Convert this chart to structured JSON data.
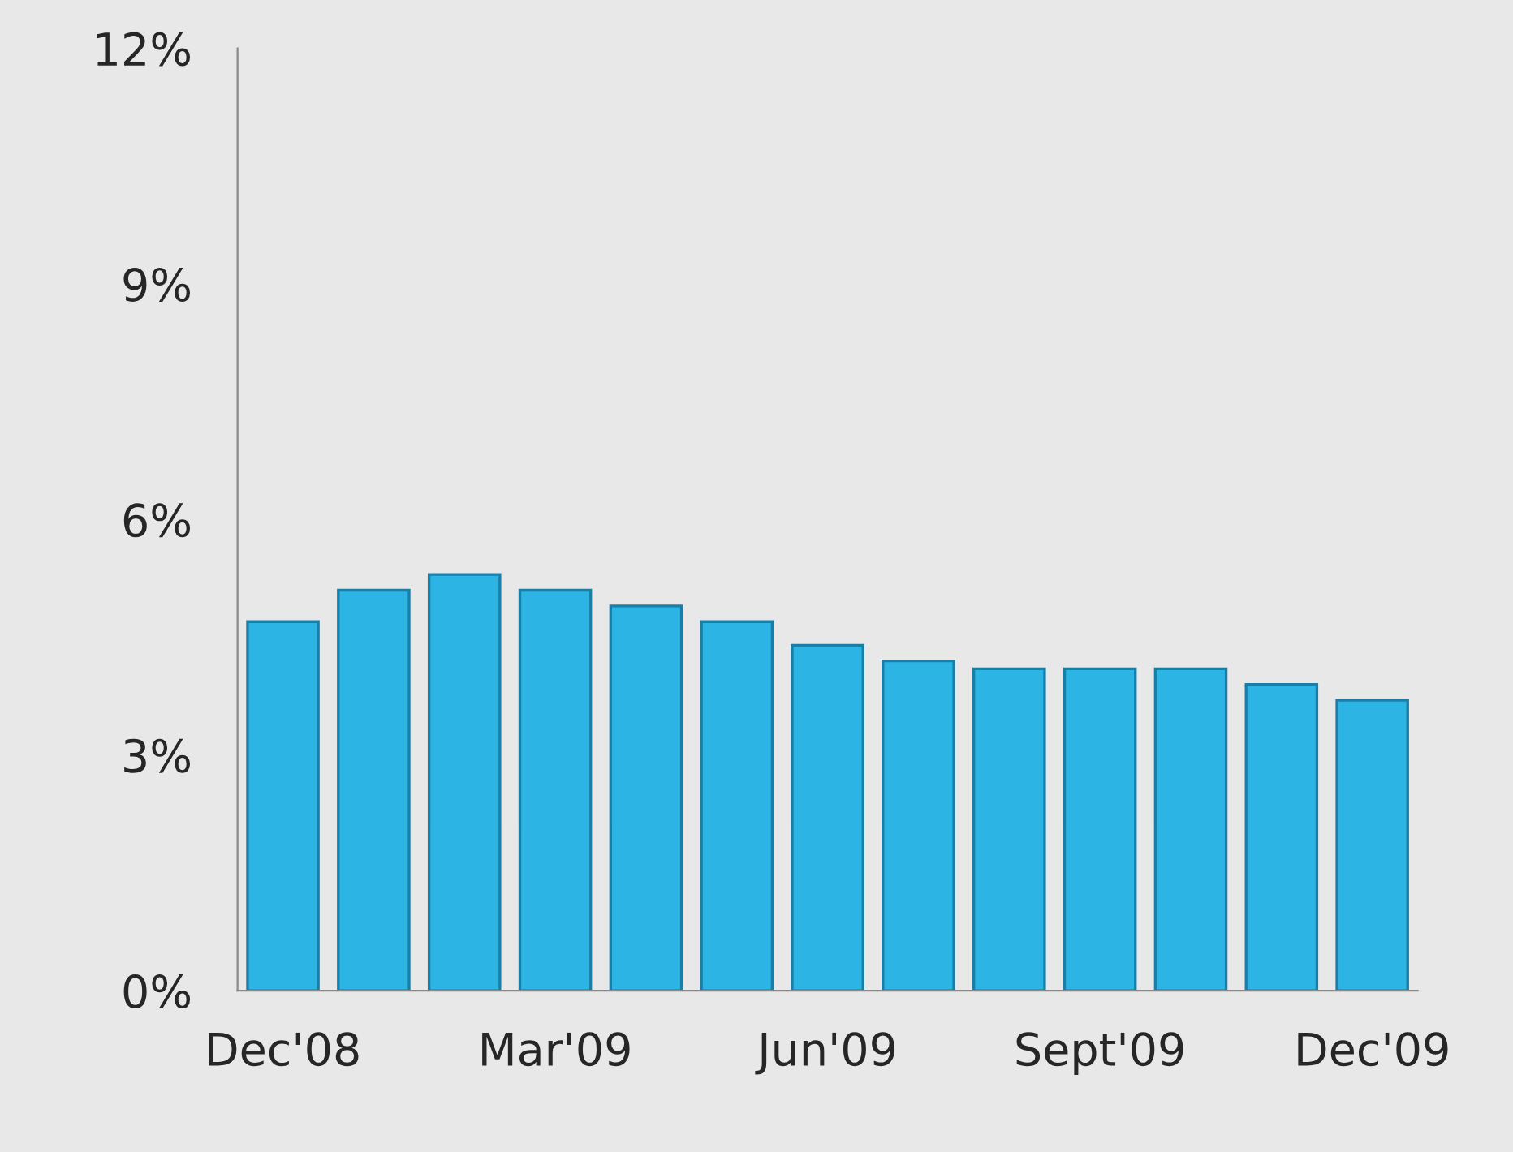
{
  "chart_data": {
    "type": "bar",
    "categories": [
      "Dec'08",
      null,
      null,
      "Mar'09",
      null,
      null,
      "Jun'09",
      null,
      null,
      "Sept'09",
      null,
      null,
      "Dec'09"
    ],
    "values": [
      4.7,
      5.1,
      5.3,
      5.1,
      4.9,
      4.7,
      4.4,
      4.2,
      4.1,
      4.1,
      4.1,
      3.9,
      3.7
    ],
    "color": "#2cb4e4",
    "ylim": [
      0,
      12
    ],
    "yticks": [
      {
        "value": 0,
        "label": "0%"
      },
      {
        "value": 3,
        "label": "3%"
      },
      {
        "value": 6,
        "label": "6%"
      },
      {
        "value": 9,
        "label": "9%"
      },
      {
        "value": 12,
        "label": "12%"
      }
    ],
    "grid": false
  }
}
